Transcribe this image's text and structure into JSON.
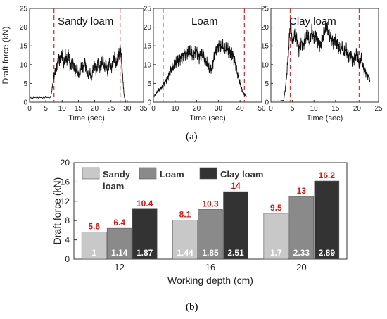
{
  "captions": {
    "a": "(a)",
    "b": "(b)"
  },
  "chart_data": [
    {
      "type": "line",
      "panel": "top-left",
      "title": "Sandy loam",
      "xlabel": "Time (sec)",
      "ylabel": "Draft force (kN)",
      "xlim": [
        0,
        35
      ],
      "ylim": [
        0,
        25
      ],
      "xticks": [
        0,
        5,
        10,
        15,
        20,
        25,
        30,
        35
      ],
      "yticks": [
        0,
        5,
        10,
        15,
        20,
        25
      ],
      "series": [
        {
          "x": [
            0,
            2,
            4,
            6.5,
            7,
            7.5,
            8,
            8.5,
            9,
            9.5,
            10,
            10.5,
            11,
            11.5,
            12,
            12.5,
            13,
            13.5,
            14,
            14.5,
            15,
            15.5,
            16,
            16.5,
            17,
            17.5,
            18,
            18.5,
            19,
            19.5,
            20,
            20.5,
            21,
            21.5,
            22,
            22.5,
            23,
            23.5,
            24,
            24.5,
            25,
            25.5,
            26,
            26.5,
            27,
            27.5,
            28,
            28.5,
            29,
            29.5
          ],
          "y": [
            1.2,
            1.2,
            1.2,
            1.3,
            4,
            7,
            8.5,
            10,
            12,
            11,
            13,
            10,
            12,
            11,
            13,
            9,
            11,
            10,
            8,
            9,
            7,
            8,
            10,
            9,
            11,
            8,
            7,
            8,
            6,
            9,
            10,
            8,
            11,
            9,
            10,
            11,
            9,
            10,
            8,
            11,
            9,
            10,
            12,
            10,
            11,
            13,
            14,
            8,
            2,
            0
          ]
        }
      ],
      "markers": [
        7.5,
        27.8
      ]
    },
    {
      "type": "line",
      "panel": "top-middle",
      "title": "Loam",
      "xlabel": "Time (sec)",
      "ylabel": "",
      "xlim": [
        0,
        50
      ],
      "ylim": [
        0,
        25
      ],
      "xticks": [
        0,
        10,
        20,
        30,
        40,
        50
      ],
      "yticks": [
        0,
        5,
        10,
        15,
        20,
        25
      ],
      "series": [
        {
          "x": [
            0,
            1,
            2,
            3,
            4,
            5,
            6,
            7,
            8,
            9,
            10,
            11,
            12,
            13,
            14,
            15,
            16,
            17,
            18,
            19,
            20,
            21,
            22,
            23,
            24,
            25,
            26,
            27,
            28,
            29,
            30,
            31,
            32,
            33,
            34,
            35,
            36,
            37,
            38,
            39,
            40,
            41,
            42,
            43
          ],
          "y": [
            1.5,
            2,
            3,
            3.5,
            4,
            5,
            6,
            7,
            8.5,
            9,
            10,
            11,
            11.5,
            12,
            12.5,
            13,
            13,
            13.5,
            12.5,
            13,
            13.5,
            12,
            13,
            12.5,
            11,
            10,
            8.5,
            9,
            12,
            14,
            15,
            14.5,
            15,
            14,
            14.5,
            13,
            13.5,
            12,
            10,
            7,
            5,
            3,
            2,
            1.5
          ]
        }
      ],
      "markers": [
        4.5,
        42
      ]
    },
    {
      "type": "line",
      "panel": "top-right",
      "title": "Clay loam",
      "xlabel": "Time (sec)",
      "ylabel": "",
      "xlim": [
        0,
        25
      ],
      "ylim": [
        0,
        25
      ],
      "xticks": [
        0,
        5,
        10,
        15,
        20,
        25
      ],
      "yticks": [
        0,
        5,
        10,
        15,
        20,
        25
      ],
      "series": [
        {
          "x": [
            0,
            1,
            2,
            3,
            3.5,
            4,
            4.5,
            5,
            5.5,
            6,
            6.5,
            7,
            7.5,
            8,
            8.5,
            9,
            9.5,
            10,
            10.5,
            11,
            11.5,
            12,
            12.5,
            13,
            13.5,
            14,
            14.5,
            15,
            15.5,
            16,
            16.5,
            17,
            17.5,
            18,
            18.5,
            19,
            19.5,
            20,
            20.5,
            21,
            21.5,
            22,
            22.5,
            23
          ],
          "y": [
            0.3,
            0.3,
            0.3,
            0.5,
            5,
            12,
            21,
            16,
            18,
            17,
            14,
            16,
            15,
            17,
            18,
            16,
            19,
            17,
            18,
            16,
            15,
            17,
            19,
            20,
            18,
            17,
            16,
            17,
            15,
            14,
            15,
            13,
            14,
            12,
            13,
            11,
            12,
            13,
            10,
            12,
            9,
            8,
            7,
            6
          ]
        }
      ],
      "markers": [
        4.5,
        20.5
      ]
    },
    {
      "type": "bar",
      "panel": "bottom",
      "xlabel": "Working depth (cm)",
      "ylabel": "Draft force (kN)",
      "ylim": [
        0,
        20
      ],
      "yticks": [
        0,
        4,
        8,
        12,
        16,
        20
      ],
      "categories": [
        "12",
        "16",
        "20"
      ],
      "legend_position": "top-left",
      "series": [
        {
          "name": "Sandy loam",
          "values": [
            5.6,
            8.1,
            9.5
          ],
          "ratios": [
            "1",
            "1.44",
            "1.7"
          ],
          "color": "#c8c8c8"
        },
        {
          "name": "Loam",
          "values": [
            6.4,
            10.3,
            13
          ],
          "ratios": [
            "1.14",
            "1.85",
            "2.33"
          ],
          "color": "#8a8a8a"
        },
        {
          "name": "Clay loam",
          "values": [
            10.4,
            14,
            16.2
          ],
          "ratios": [
            "1.87",
            "2.51",
            "2.89"
          ],
          "color": "#333333"
        }
      ],
      "value_label_color": "#e01010"
    }
  ]
}
